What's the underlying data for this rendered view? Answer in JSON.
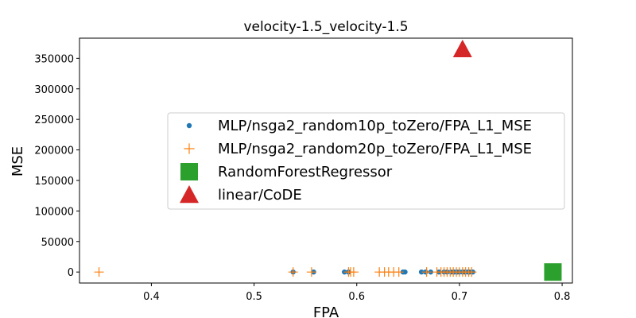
{
  "chart_data": {
    "type": "scatter",
    "title": "velocity-1.5_velocity-1.5",
    "xlabel": "FPA",
    "ylabel": "MSE",
    "xlim": [
      0.33,
      0.81
    ],
    "ylim": [
      -18000,
      383000
    ],
    "x_ticks": [
      0.4,
      0.5,
      0.6,
      0.7,
      0.8
    ],
    "y_ticks": [
      0,
      50000,
      100000,
      150000,
      200000,
      250000,
      300000,
      350000
    ],
    "grid": false,
    "legend_position": "center-right",
    "series": [
      {
        "name": "MLP/nsga2_random10p_toZero/FPA_L1_MSE",
        "marker": "dot",
        "color": "#1f77b4",
        "x": [
          0.538,
          0.558,
          0.588,
          0.592,
          0.645,
          0.647,
          0.663,
          0.667,
          0.672,
          0.68,
          0.685,
          0.688,
          0.692,
          0.695,
          0.698,
          0.7,
          0.703,
          0.705,
          0.708,
          0.71,
          0.713
        ],
        "y": [
          0,
          0,
          0,
          0,
          0,
          0,
          0,
          0,
          0,
          0,
          0,
          0,
          0,
          0,
          0,
          0,
          0,
          0,
          0,
          0,
          0
        ]
      },
      {
        "name": "MLP/nsga2_random20p_toZero/FPA_L1_MSE",
        "marker": "plus",
        "color": "#ff7f0e",
        "x": [
          0.349,
          0.538,
          0.556,
          0.592,
          0.594,
          0.597,
          0.622,
          0.627,
          0.631,
          0.636,
          0.641,
          0.668,
          0.678,
          0.682,
          0.685,
          0.688,
          0.691,
          0.694,
          0.697,
          0.7,
          0.703,
          0.706,
          0.709,
          0.712
        ],
        "y": [
          0,
          0,
          0,
          0,
          0,
          0,
          0,
          0,
          0,
          0,
          0,
          0,
          0,
          0,
          0,
          0,
          0,
          0,
          0,
          0,
          0,
          0,
          0,
          0
        ]
      },
      {
        "name": "RandomForestRegressor",
        "marker": "square",
        "color": "#2ca02c",
        "x": [
          0.791
        ],
        "y": [
          0
        ]
      },
      {
        "name": "linear/CoDE",
        "marker": "triangle",
        "color": "#d62728",
        "x": [
          0.703
        ],
        "y": [
          365000
        ]
      }
    ]
  }
}
